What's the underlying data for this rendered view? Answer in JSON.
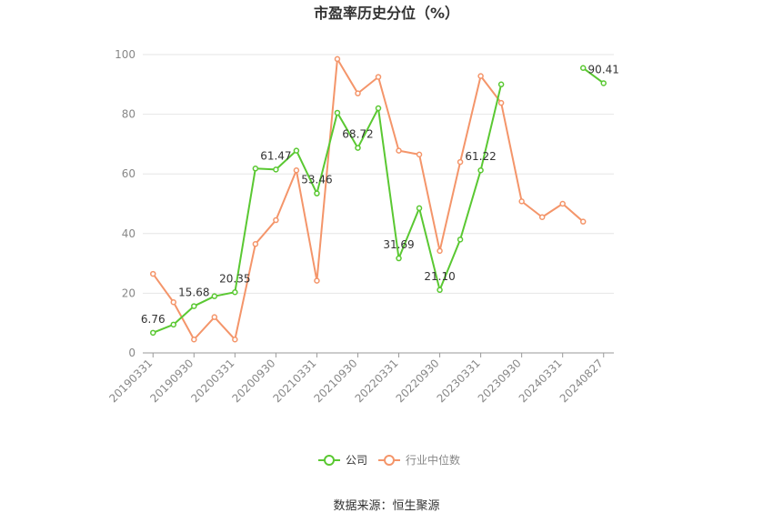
{
  "chart_data": {
    "type": "line",
    "title": "市盈率历史分位（%）",
    "source_text": "数据来源：恒生聚源",
    "ylim": [
      0,
      100
    ],
    "yticks": [
      0,
      20,
      40,
      60,
      80,
      100
    ],
    "grid": true,
    "legend_position": "bottom",
    "x": [
      "20190331",
      "20190630",
      "20190930",
      "20191231",
      "20200331",
      "20200630",
      "20200930",
      "20201231",
      "20210331",
      "20210630",
      "20210930",
      "20211231",
      "20220331",
      "20220630",
      "20220930",
      "20221231",
      "20230331",
      "20230630",
      "20230930",
      "20231231",
      "20240331",
      "20240630",
      "20240827"
    ],
    "xtick_labels": [
      "20190331",
      "20190930",
      "20200331",
      "20200930",
      "20210331",
      "20210930",
      "20220331",
      "20220930",
      "20230331",
      "20230930",
      "20240331",
      "20240827"
    ],
    "series": [
      {
        "name": "公司",
        "color": "#5ac832",
        "values": [
          6.76,
          9.5,
          15.68,
          19.0,
          20.35,
          61.8,
          61.47,
          67.8,
          53.46,
          80.5,
          68.72,
          82.0,
          31.69,
          48.5,
          21.1,
          38.0,
          61.22,
          90.0,
          null,
          null,
          null,
          95.5,
          90.41
        ],
        "data_labels": {
          "0": "6.76",
          "2": "15.68",
          "4": "20.35",
          "6": "61.47",
          "8": "53.46",
          "10": "68.72",
          "12": "31.69",
          "14": "21.10",
          "16": "61.22",
          "22": "90.41"
        }
      },
      {
        "name": "行业中位数",
        "color": "#f4956a",
        "values": [
          26.5,
          17.0,
          4.5,
          12.0,
          4.5,
          36.5,
          44.5,
          61.2,
          24.2,
          98.5,
          87.0,
          92.5,
          67.8,
          66.5,
          34.2,
          64.0,
          92.8,
          83.8,
          50.8,
          45.5,
          50.0,
          44.0,
          null
        ]
      }
    ]
  }
}
